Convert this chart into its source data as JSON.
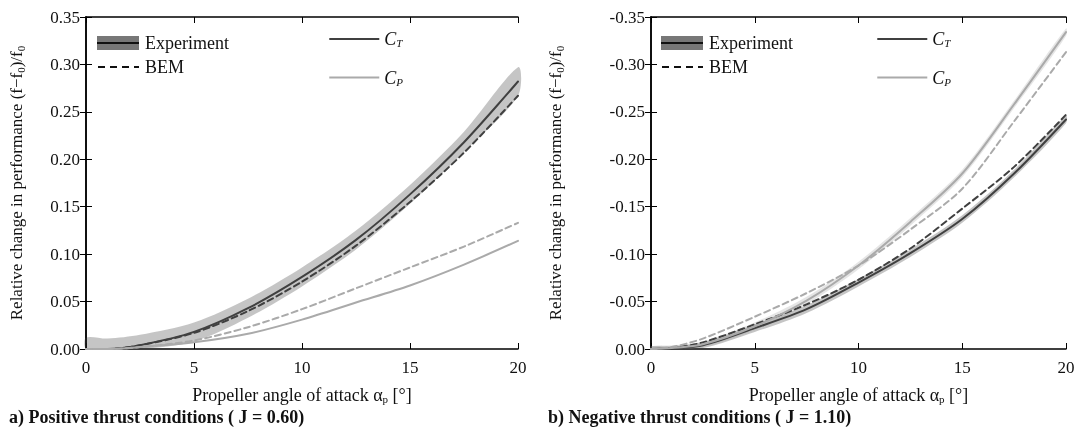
{
  "chart_data": [
    {
      "type": "line",
      "title": "a) Positive thrust conditions ( J = 0.60)",
      "xlabel": "Propeller angle of attack α$_{p}$ [°]",
      "ylabel": "Relative change in performance (f−f$_{0}$)/f$_{0}$",
      "x": [
        0,
        1,
        2.5,
        5,
        7.5,
        10,
        12.5,
        15,
        17.5,
        20
      ],
      "xlim": [
        0,
        20
      ],
      "xticks": [
        0,
        5,
        10,
        15,
        20
      ],
      "ylim": [
        0,
        0.35
      ],
      "yticks": [
        {
          "value": 0,
          "label": "0.00"
        },
        {
          "value": 0.05,
          "label": "0.05"
        },
        {
          "value": 0.1,
          "label": "0.10"
        },
        {
          "value": 0.15,
          "label": "0.15"
        },
        {
          "value": 0.2,
          "label": "0.20"
        },
        {
          "value": 0.25,
          "label": "0.25"
        },
        {
          "value": 0.3,
          "label": "0.30"
        },
        {
          "value": 0.35,
          "label": "0.35"
        }
      ],
      "grid": false,
      "legend": "top right",
      "annotations": [
        "Experiment",
        "BEM"
      ],
      "series": [
        {
          "name": "C$_{T}$",
          "color": "#404040",
          "line_style": "solid",
          "values": [
            0,
            0,
            0.004,
            0.018,
            0.043,
            0.076,
            0.115,
            0.163,
            0.218,
            0.282
          ],
          "lower": [
            0,
            0,
            0,
            0.008,
            0.033,
            0.066,
            0.105,
            0.153,
            0.208,
            0.267
          ],
          "upper": [
            0.012,
            0.011,
            0.015,
            0.028,
            0.053,
            0.086,
            0.125,
            0.173,
            0.229,
            0.297
          ]
        },
        {
          "color": "#404040",
          "line_style": "dashed",
          "values": [
            0,
            0,
            0.004,
            0.017,
            0.04,
            0.071,
            0.109,
            0.155,
            0.207,
            0.267
          ]
        },
        {
          "name": "C$_{P}$",
          "color": "#aaaaaa",
          "line_style": "solid",
          "values": [
            0,
            0,
            0.002,
            0.007,
            0.016,
            0.031,
            0.049,
            0.067,
            0.089,
            0.114
          ]
        },
        {
          "color": "#aaaaaa",
          "line_style": "dashed",
          "values": [
            0,
            0,
            0.002,
            0.009,
            0.023,
            0.042,
            0.064,
            0.086,
            0.108,
            0.133
          ]
        }
      ]
    },
    {
      "type": "line",
      "title": "b) Negative thrust conditions ( J = 1.10)",
      "xlabel": "Propeller angle of attack α$_{p}$ [°]",
      "ylabel": "Relative change in performance (f−f$_{0}$)/f$_{0}$",
      "x": [
        0,
        1,
        2.5,
        5,
        7.5,
        10,
        12.5,
        15,
        17.5,
        20
      ],
      "xlim": [
        0,
        20
      ],
      "xticks": [
        0,
        5,
        10,
        15,
        20
      ],
      "ylim": [
        0,
        -0.35
      ],
      "yticks": [
        {
          "value": 0,
          "label": "0.00"
        },
        {
          "value": -0.05,
          "label": "-0.05"
        },
        {
          "value": -0.1,
          "label": "-0.10"
        },
        {
          "value": -0.15,
          "label": "-0.15"
        },
        {
          "value": -0.2,
          "label": "-0.20"
        },
        {
          "value": -0.25,
          "label": "-0.25"
        },
        {
          "value": -0.3,
          "label": "-0.30"
        },
        {
          "value": -0.35,
          "label": "-0.35"
        }
      ],
      "grid": false,
      "legend": "top right",
      "annotations": [
        "Experiment",
        "BEM"
      ],
      "series": [
        {
          "name": "C$_{T}$",
          "color": "#404040",
          "line_style": "solid",
          "values": [
            0,
            -0.001,
            -0.004,
            -0.022,
            -0.042,
            -0.07,
            -0.101,
            -0.137,
            -0.185,
            -0.242
          ],
          "lower": [
            -0.003,
            -0.003,
            -0.007,
            -0.026,
            -0.046,
            -0.074,
            -0.105,
            -0.141,
            -0.189,
            -0.246
          ],
          "upper": [
            0,
            0,
            -0.001,
            -0.018,
            -0.038,
            -0.066,
            -0.097,
            -0.133,
            -0.181,
            -0.238
          ]
        },
        {
          "color": "#404040",
          "line_style": "dashed",
          "values": [
            0,
            -0.001,
            -0.007,
            -0.026,
            -0.047,
            -0.073,
            -0.106,
            -0.148,
            -0.192,
            -0.247
          ]
        },
        {
          "name": "C$_{P}$",
          "color": "#aaaaaa",
          "line_style": "solid",
          "values": [
            0,
            -0.001,
            -0.005,
            -0.024,
            -0.051,
            -0.088,
            -0.134,
            -0.185,
            -0.258,
            -0.334
          ],
          "lower": [
            -0.003,
            -0.004,
            -0.008,
            -0.028,
            -0.055,
            -0.092,
            -0.138,
            -0.189,
            -0.262,
            -0.338
          ],
          "upper": [
            0,
            0,
            -0.002,
            -0.02,
            -0.047,
            -0.084,
            -0.13,
            -0.181,
            -0.254,
            -0.33
          ]
        },
        {
          "color": "#aaaaaa",
          "line_style": "dashed",
          "values": [
            0,
            -0.002,
            -0.011,
            -0.034,
            -0.059,
            -0.088,
            -0.126,
            -0.169,
            -0.24,
            -0.313
          ]
        }
      ]
    }
  ]
}
